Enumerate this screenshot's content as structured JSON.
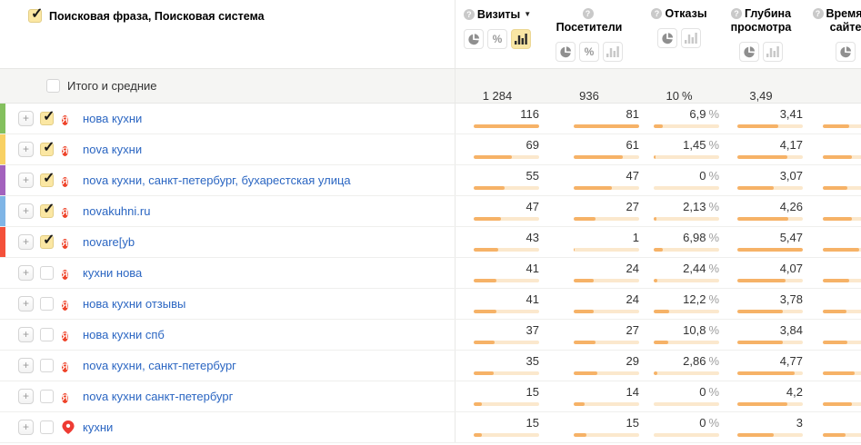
{
  "colors": {
    "accent_yellow": "#f9e6a4",
    "bar_fill": "#f6b267",
    "bar_track": "#fbe8cd",
    "link_blue": "#2b66c2",
    "yandex_red": "#ee4329",
    "totals_bg": "#f5f5f3"
  },
  "percent_sign": "%",
  "header": {
    "phrase_column_title": "Поисковая фраза, Поисковая система",
    "columns": [
      {
        "label": "Визиты",
        "sorted": "desc",
        "buttons": [
          "pie",
          "percent",
          "bar"
        ],
        "active_button": "bar"
      },
      {
        "label": "Посетители",
        "sorted": null,
        "buttons": [
          "pie",
          "percent",
          "bar"
        ],
        "active_button": null
      },
      {
        "label": "Отказы",
        "sorted": null,
        "buttons": [
          "pie",
          "bar"
        ],
        "active_button": null
      },
      {
        "label": "Глубина просмотра",
        "sorted": null,
        "buttons": [
          "pie",
          "bar"
        ],
        "active_button": null
      },
      {
        "label": "Время на сайте",
        "sorted": null,
        "buttons": [
          "pie"
        ],
        "active_button": null
      }
    ]
  },
  "totals_row": {
    "label": "Итого и средние",
    "visits": "1 284",
    "visitors": "936",
    "bounce": "10",
    "depth": "3,49"
  },
  "rows": [
    {
      "strip": "#84c05e",
      "checked": true,
      "icon": "yandex",
      "phrase": "нова кухни",
      "visits": "116",
      "visits_bar": 100,
      "visitors": "81",
      "visitors_bar": 100,
      "bounce": "6,9",
      "bounce_bar": 14,
      "depth": "3,41",
      "depth_bar": 62,
      "time_bar": 40
    },
    {
      "strip": "#f8d164",
      "checked": true,
      "icon": "yandex",
      "phrase": "nova кухни",
      "visits": "69",
      "visits_bar": 59,
      "visitors": "61",
      "visitors_bar": 75,
      "bounce": "1,45",
      "bounce_bar": 3,
      "depth": "4,17",
      "depth_bar": 76,
      "time_bar": 45
    },
    {
      "strip": "#a362bd",
      "checked": true,
      "icon": "yandex",
      "phrase": "nova кухни, санкт-петербург, бухарестская улица",
      "visits": "55",
      "visits_bar": 47,
      "visitors": "47",
      "visitors_bar": 58,
      "bounce": "0",
      "bounce_bar": 0,
      "depth": "3,07",
      "depth_bar": 56,
      "time_bar": 38
    },
    {
      "strip": "#7fb5e6",
      "checked": true,
      "icon": "yandex",
      "phrase": "novakuhni.ru",
      "visits": "47",
      "visits_bar": 41,
      "visitors": "27",
      "visitors_bar": 33,
      "bounce": "2,13",
      "bounce_bar": 4,
      "depth": "4,26",
      "depth_bar": 78,
      "time_bar": 45
    },
    {
      "strip": "#f4503a",
      "checked": true,
      "icon": "yandex",
      "phrase": "novare[yb",
      "visits": "43",
      "visits_bar": 37,
      "visitors": "1",
      "visitors_bar": 2,
      "bounce": "6,98",
      "bounce_bar": 14,
      "depth": "5,47",
      "depth_bar": 100,
      "time_bar": 55
    },
    {
      "strip": null,
      "checked": false,
      "icon": "yandex",
      "phrase": "кухни нова",
      "visits": "41",
      "visits_bar": 35,
      "visitors": "24",
      "visitors_bar": 30,
      "bounce": "2,44",
      "bounce_bar": 5,
      "depth": "4,07",
      "depth_bar": 74,
      "time_bar": 40
    },
    {
      "strip": null,
      "checked": false,
      "icon": "yandex",
      "phrase": "нова кухни отзывы",
      "visits": "41",
      "visits_bar": 35,
      "visitors": "24",
      "visitors_bar": 30,
      "bounce": "12,2",
      "bounce_bar": 24,
      "depth": "3,78",
      "depth_bar": 69,
      "time_bar": 36
    },
    {
      "strip": null,
      "checked": false,
      "icon": "yandex",
      "phrase": "нова кухни спб",
      "visits": "37",
      "visits_bar": 32,
      "visitors": "27",
      "visitors_bar": 33,
      "bounce": "10,8",
      "bounce_bar": 22,
      "depth": "3,84",
      "depth_bar": 70,
      "time_bar": 38
    },
    {
      "strip": null,
      "checked": false,
      "icon": "yandex",
      "phrase": "nova кухни, санкт-петербург",
      "visits": "35",
      "visits_bar": 30,
      "visitors": "29",
      "visitors_bar": 36,
      "bounce": "2,86",
      "bounce_bar": 6,
      "depth": "4,77",
      "depth_bar": 87,
      "time_bar": 48
    },
    {
      "strip": null,
      "checked": false,
      "icon": "yandex",
      "phrase": "nova кухни санкт-петербург",
      "visits": "15",
      "visits_bar": 13,
      "visitors": "14",
      "visitors_bar": 17,
      "bounce": "0",
      "bounce_bar": 0,
      "depth": "4,2",
      "depth_bar": 77,
      "time_bar": 44
    },
    {
      "strip": null,
      "checked": false,
      "icon": "maps-pin",
      "phrase": "кухни",
      "visits": "15",
      "visits_bar": 13,
      "visitors": "15",
      "visitors_bar": 19,
      "bounce": "0",
      "bounce_bar": 0,
      "depth": "3",
      "depth_bar": 55,
      "time_bar": 35
    }
  ]
}
